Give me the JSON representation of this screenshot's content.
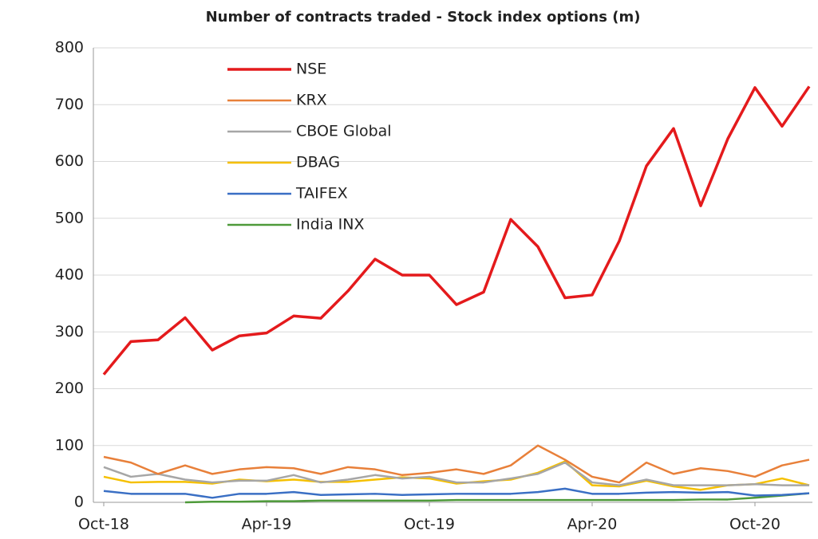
{
  "chart_data": {
    "type": "line",
    "title": "Number of contracts traded - Stock index options (m)",
    "categories": [
      "Oct-18",
      null,
      null,
      null,
      null,
      null,
      "Apr-19",
      null,
      null,
      null,
      null,
      null,
      "Oct-19",
      null,
      null,
      null,
      null,
      null,
      "Apr-20",
      null,
      null,
      null,
      null,
      null,
      "Oct-20",
      null,
      null
    ],
    "series": [
      {
        "name": "NSE",
        "color": "#e41a1c",
        "values": [
          225,
          283,
          286,
          325,
          268,
          293,
          298,
          328,
          324,
          372,
          428,
          400,
          400,
          348,
          370,
          498,
          450,
          360,
          365,
          460,
          592,
          658,
          522,
          640,
          730,
          662,
          732
        ]
      },
      {
        "name": "KRX",
        "color": "#e8803a",
        "values": [
          80,
          70,
          50,
          65,
          50,
          58,
          62,
          60,
          50,
          62,
          58,
          48,
          52,
          58,
          50,
          65,
          100,
          75,
          45,
          35,
          70,
          50,
          60,
          55,
          45,
          65,
          75
        ]
      },
      {
        "name": "CBOE Global",
        "color": "#a6a6a6",
        "values": [
          62,
          45,
          50,
          40,
          35,
          38,
          38,
          48,
          35,
          40,
          48,
          42,
          45,
          35,
          35,
          42,
          50,
          70,
          35,
          30,
          40,
          30,
          30,
          30,
          32,
          30,
          30
        ]
      },
      {
        "name": "DBAG",
        "color": "#f5c000",
        "values": [
          45,
          35,
          36,
          36,
          33,
          40,
          37,
          40,
          36,
          36,
          40,
          44,
          42,
          33,
          37,
          40,
          52,
          72,
          30,
          28,
          38,
          28,
          22,
          30,
          32,
          42,
          30
        ]
      },
      {
        "name": "TAIFEX",
        "color": "#3a6fc4",
        "values": [
          20,
          15,
          15,
          15,
          8,
          15,
          15,
          18,
          13,
          14,
          15,
          13,
          14,
          15,
          15,
          15,
          18,
          24,
          15,
          15,
          17,
          18,
          17,
          18,
          12,
          13,
          16
        ]
      },
      {
        "name": "India INX",
        "color": "#4e9a3a",
        "values": [
          null,
          null,
          null,
          0,
          1,
          1,
          2,
          2,
          3,
          3,
          3,
          3,
          3,
          4,
          4,
          4,
          4,
          4,
          4,
          4,
          4,
          4,
          5,
          5,
          8,
          12,
          16
        ]
      }
    ],
    "ylim": [
      0,
      800
    ],
    "yticks": [
      0,
      100,
      200,
      300,
      400,
      500,
      600,
      700,
      800
    ],
    "grid": true,
    "legend": "upper left"
  }
}
